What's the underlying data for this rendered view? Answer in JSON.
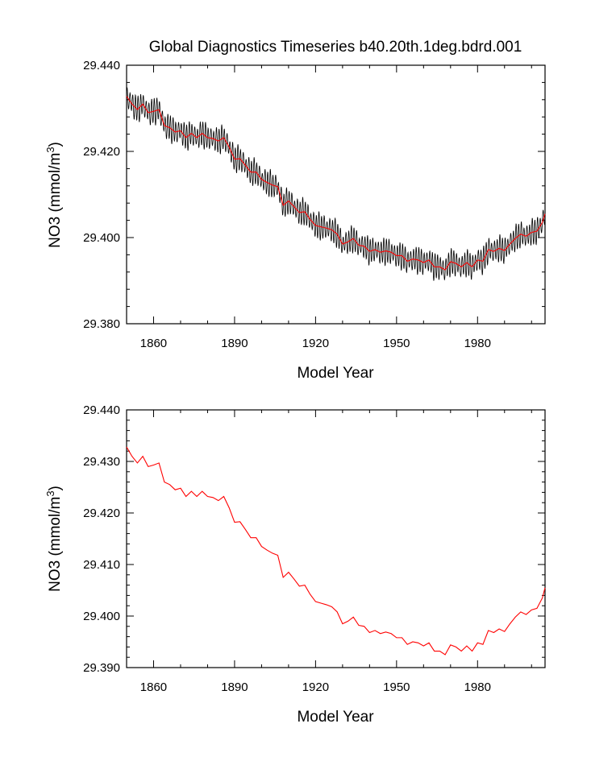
{
  "title": "Global Diagnostics Timeseries b40.20th.1deg.bdrd.001",
  "colors": {
    "monthly": "#000000",
    "annual": "#ff0000",
    "axes": "#000000"
  },
  "chart_data": [
    {
      "type": "line",
      "name": "top",
      "xlabel": "Model Year",
      "ylabel_base": "NO3 (mmol/m",
      "ylabel_sup": "3",
      "ylabel_tail": ")",
      "xlim": [
        1850,
        2005
      ],
      "ylim": [
        29.38,
        29.44
      ],
      "xticks": [
        1860,
        1890,
        1920,
        1950,
        1980
      ],
      "xtick_labels": [
        "1860",
        "1890",
        "1920",
        "1950",
        "1980"
      ],
      "yticks": [
        29.38,
        29.4,
        29.42,
        29.44
      ],
      "ytick_labels": [
        "29.380",
        "29.400",
        "29.420",
        "29.440"
      ],
      "series": [
        {
          "name": "monthly",
          "color": "#000000",
          "cycle_amplitude": 0.0025,
          "x_start": 1850,
          "x_end": 2005,
          "x_step_years": 0.0833333,
          "follows": "annual"
        },
        {
          "name": "annual",
          "color": "#ff0000",
          "follows": "annual"
        }
      ]
    },
    {
      "type": "line",
      "name": "bottom",
      "xlabel": "Model Year",
      "ylabel_base": "NO3 (mmol/m",
      "ylabel_sup": "3",
      "ylabel_tail": ")",
      "xlim": [
        1850,
        2005
      ],
      "ylim": [
        29.39,
        29.44
      ],
      "xticks": [
        1860,
        1890,
        1920,
        1950,
        1980
      ],
      "xtick_labels": [
        "1860",
        "1890",
        "1920",
        "1950",
        "1980"
      ],
      "yticks": [
        29.39,
        29.4,
        29.41,
        29.42,
        29.43,
        29.44
      ],
      "ytick_labels": [
        "29.390",
        "29.400",
        "29.410",
        "29.420",
        "29.430",
        "29.440"
      ],
      "series": [
        {
          "name": "annual",
          "color": "#ff0000",
          "follows": "annual"
        }
      ]
    }
  ],
  "annual": {
    "x": [
      1850,
      1852,
      1854,
      1856,
      1858,
      1860,
      1862,
      1864,
      1866,
      1868,
      1870,
      1872,
      1874,
      1876,
      1878,
      1880,
      1882,
      1884,
      1886,
      1888,
      1890,
      1892,
      1894,
      1896,
      1898,
      1900,
      1902,
      1904,
      1906,
      1908,
      1910,
      1912,
      1914,
      1916,
      1918,
      1920,
      1922,
      1924,
      1926,
      1928,
      1930,
      1932,
      1934,
      1936,
      1938,
      1940,
      1942,
      1944,
      1946,
      1948,
      1950,
      1952,
      1954,
      1956,
      1958,
      1960,
      1962,
      1964,
      1966,
      1968,
      1970,
      1972,
      1974,
      1976,
      1978,
      1980,
      1982,
      1984,
      1986,
      1988,
      1990,
      1992,
      1994,
      1996,
      1998,
      2000,
      2002,
      2004,
      2005
    ],
    "y": [
      29.4328,
      29.431,
      29.4297,
      29.431,
      29.429,
      29.4293,
      29.4297,
      29.426,
      29.4255,
      29.4245,
      29.4248,
      29.4232,
      29.4242,
      29.4232,
      29.4242,
      29.4232,
      29.423,
      29.4224,
      29.4232,
      29.421,
      29.4182,
      29.4183,
      29.4168,
      29.4152,
      29.4152,
      29.4135,
      29.4128,
      29.4122,
      29.4118,
      29.4075,
      29.4085,
      29.4072,
      29.4058,
      29.406,
      29.4042,
      29.4028,
      29.4025,
      29.4022,
      29.4018,
      29.4008,
      29.3985,
      29.399,
      29.3998,
      29.3982,
      29.398,
      29.3968,
      29.3972,
      29.3966,
      29.3969,
      29.3966,
      29.3958,
      29.3958,
      29.3945,
      29.395,
      29.3948,
      29.3942,
      29.3948,
      29.3932,
      29.3932,
      29.3925,
      29.3944,
      29.394,
      29.3932,
      29.3942,
      29.3932,
      29.3948,
      29.3945,
      29.3972,
      29.3968,
      29.3975,
      29.397,
      29.3985,
      29.3998,
      29.4008,
      29.4003,
      29.4012,
      29.4015,
      29.4035,
      29.4055
    ]
  }
}
